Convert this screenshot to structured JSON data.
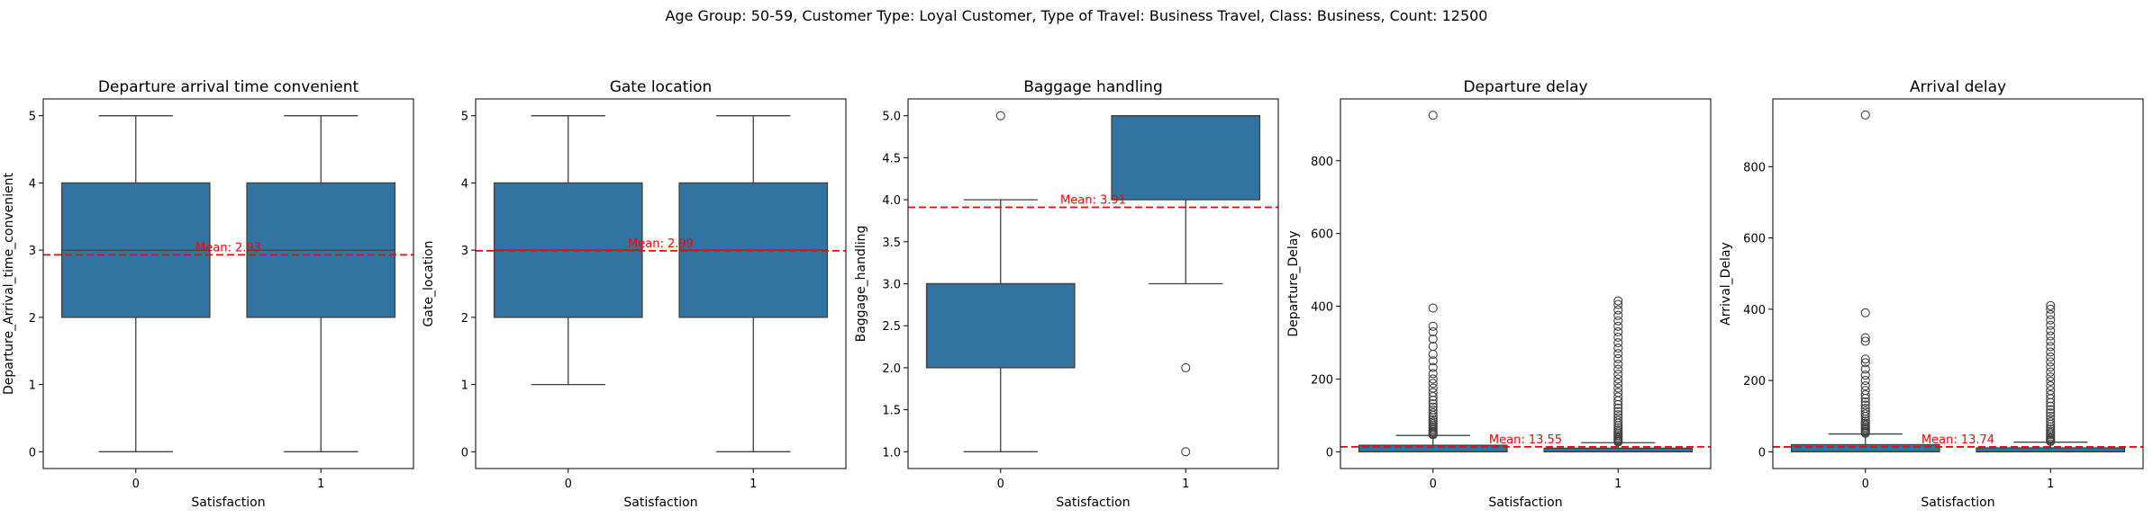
{
  "suptitle": "Age Group: 50-59, Customer Type: Loyal Customer, Type of Travel: Business Travel, Class: Business, Count: 12500",
  "colors": {
    "box": "#3274a1",
    "line": "#3f3f3f",
    "mean": "#ff0000",
    "axis": "#000000"
  },
  "chart_data": [
    {
      "type": "box",
      "title": "Departure arrival time convenient",
      "xlabel": "Satisfaction",
      "ylabel": "Departure_Arrival_time_convenient",
      "categories": [
        "0",
        "1"
      ],
      "ylim": [
        -0.25,
        5.25
      ],
      "yticks": [
        0,
        1,
        2,
        3,
        4,
        5
      ],
      "ytick_labels": [
        "0",
        "1",
        "2",
        "3",
        "4",
        "5"
      ],
      "boxes": [
        {
          "whislo": 0,
          "q1": 2,
          "med": 3,
          "q3": 4,
          "whishi": 5,
          "fliers": []
        },
        {
          "whislo": 0,
          "q1": 2,
          "med": 3,
          "q3": 4,
          "whishi": 5,
          "fliers": []
        }
      ],
      "mean": 2.93,
      "mean_label": "Mean: 2.93"
    },
    {
      "type": "box",
      "title": "Gate location",
      "xlabel": "Satisfaction",
      "ylabel": "Gate_location",
      "categories": [
        "0",
        "1"
      ],
      "ylim": [
        -0.25,
        5.25
      ],
      "yticks": [
        0,
        1,
        2,
        3,
        4,
        5
      ],
      "ytick_labels": [
        "0",
        "1",
        "2",
        "3",
        "4",
        "5"
      ],
      "boxes": [
        {
          "whislo": 1,
          "q1": 2,
          "med": 3,
          "q3": 4,
          "whishi": 5,
          "fliers": []
        },
        {
          "whislo": 0,
          "q1": 2,
          "med": 3,
          "q3": 4,
          "whishi": 5,
          "fliers": []
        }
      ],
      "mean": 2.99,
      "mean_label": "Mean: 2.99"
    },
    {
      "type": "box",
      "title": "Baggage handling",
      "xlabel": "Satisfaction",
      "ylabel": "Baggage_handling",
      "categories": [
        "0",
        "1"
      ],
      "ylim": [
        0.8,
        5.2
      ],
      "yticks": [
        1.0,
        1.5,
        2.0,
        2.5,
        3.0,
        3.5,
        4.0,
        4.5,
        5.0
      ],
      "ytick_labels": [
        "1.0",
        "1.5",
        "2.0",
        "2.5",
        "3.0",
        "3.5",
        "4.0",
        "4.5",
        "5.0"
      ],
      "boxes": [
        {
          "whislo": 1,
          "q1": 2,
          "med": 3,
          "q3": 3,
          "whishi": 4,
          "fliers": [
            5
          ]
        },
        {
          "whislo": 3,
          "q1": 4,
          "med": 5,
          "q3": 5,
          "whishi": 5,
          "fliers": [
            1,
            2
          ]
        }
      ],
      "mean": 3.91,
      "mean_label": "Mean: 3.91"
    },
    {
      "type": "box",
      "title": "Departure delay",
      "xlabel": "Satisfaction",
      "ylabel": "Departure_Delay",
      "categories": [
        "0",
        "1"
      ],
      "ylim": [
        -46,
        970
      ],
      "yticks": [
        0,
        200,
        400,
        600,
        800
      ],
      "ytick_labels": [
        "0",
        "200",
        "400",
        "600",
        "800"
      ],
      "boxes": [
        {
          "whislo": 0,
          "q1": 0,
          "med": 0,
          "q3": 18,
          "whishi": 45,
          "fliers": [
            47,
            50,
            53,
            56,
            60,
            64,
            68,
            72,
            77,
            82,
            88,
            94,
            100,
            107,
            115,
            123,
            132,
            142,
            152,
            163,
            175,
            188,
            200,
            215,
            232,
            250,
            268,
            290,
            310,
            330,
            345,
            395,
            925
          ]
        },
        {
          "whislo": 0,
          "q1": 0,
          "med": 0,
          "q3": 10,
          "whishi": 25,
          "fliers": [
            27,
            30,
            33,
            37,
            41,
            45,
            50,
            55,
            60,
            66,
            72,
            79,
            86,
            94,
            102,
            111,
            120,
            130,
            140,
            151,
            163,
            175,
            188,
            200,
            213,
            227,
            241,
            256,
            270,
            285,
            300,
            315,
            330,
            345,
            360,
            375,
            390,
            405,
            415
          ]
        }
      ],
      "mean": 13.55,
      "mean_label": "Mean: 13.55"
    },
    {
      "type": "box",
      "title": "Arrival delay",
      "xlabel": "Satisfaction",
      "ylabel": "Arrival_Delay",
      "categories": [
        "0",
        "1"
      ],
      "ylim": [
        -47,
        990
      ],
      "yticks": [
        0,
        200,
        400,
        600,
        800
      ],
      "ytick_labels": [
        "0",
        "200",
        "400",
        "600",
        "800"
      ],
      "boxes": [
        {
          "whislo": 0,
          "q1": 0,
          "med": 0,
          "q3": 20,
          "whishi": 50,
          "fliers": [
            52,
            55,
            58,
            62,
            66,
            70,
            75,
            80,
            86,
            92,
            99,
            106,
            114,
            122,
            131,
            140,
            150,
            160,
            172,
            185,
            200,
            215,
            232,
            250,
            260,
            310,
            320,
            390,
            945
          ]
        },
        {
          "whislo": 0,
          "q1": 0,
          "med": 0,
          "q3": 11,
          "whishi": 27,
          "fliers": [
            29,
            32,
            35,
            39,
            43,
            48,
            53,
            58,
            64,
            70,
            77,
            84,
            92,
            100,
            109,
            118,
            128,
            138,
            149,
            160,
            172,
            185,
            198,
            210,
            224,
            238,
            252,
            266,
            280,
            295,
            310,
            325,
            340,
            355,
            370,
            385,
            400,
            410
          ]
        }
      ],
      "mean": 13.74,
      "mean_label": "Mean: 13.74"
    }
  ]
}
